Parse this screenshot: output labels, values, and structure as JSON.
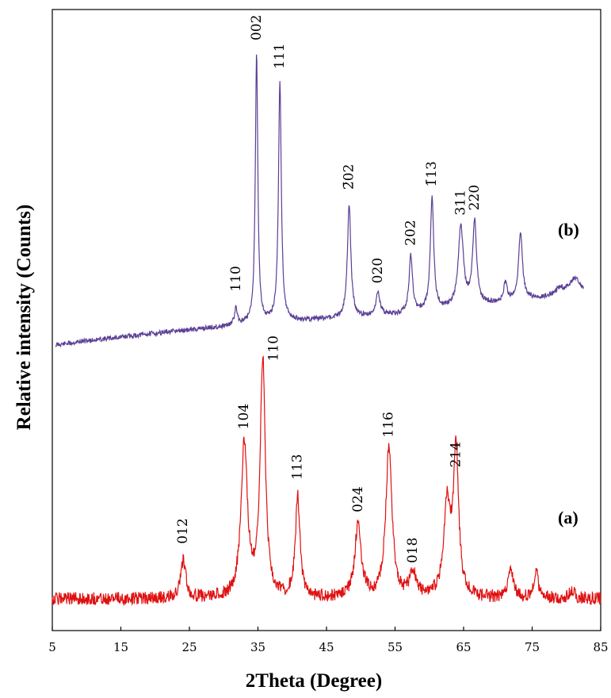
{
  "chart_data": {
    "type": "line",
    "title": "",
    "xlabel": "2Theta (Degree)",
    "ylabel": "Relative intensity (Counts)",
    "xlim": [
      5,
      85
    ],
    "xticks": [
      "5",
      "15",
      "25",
      "35",
      "45",
      "55",
      "65",
      "75",
      "85"
    ],
    "yticks_shown": false,
    "grid": false,
    "series": [
      {
        "name": "(b)",
        "color": "#5b3f96",
        "baseline": [
          [
            5.5,
            0.0
          ],
          [
            10,
            0.05
          ],
          [
            20,
            0.14
          ],
          [
            30,
            0.22
          ],
          [
            35,
            0.26
          ],
          [
            45,
            0.31
          ],
          [
            55,
            0.36
          ],
          [
            65,
            0.45
          ],
          [
            75,
            0.55
          ],
          [
            82.5,
            0.6
          ]
        ],
        "peaks": [
          {
            "x": 31.8,
            "height": 0.2,
            "width": 0.25,
            "label": "110"
          },
          {
            "x": 34.8,
            "height": 3.22,
            "width": 0.22,
            "label": "002"
          },
          {
            "x": 38.2,
            "height": 2.86,
            "width": 0.25,
            "label": "111"
          },
          {
            "x": 48.3,
            "height": 1.36,
            "width": 0.3,
            "label": "2̄02"
          },
          {
            "x": 52.5,
            "height": 0.28,
            "width": 0.35,
            "label": "020"
          },
          {
            "x": 57.3,
            "height": 0.68,
            "width": 0.3,
            "label": "202"
          },
          {
            "x": 60.4,
            "height": 1.34,
            "width": 0.3,
            "label": "1̄13"
          },
          {
            "x": 64.6,
            "height": 0.96,
            "width": 0.45,
            "label": "311"
          },
          {
            "x": 66.6,
            "height": 1.0,
            "width": 0.35,
            "label": "220"
          },
          {
            "x": 71.1,
            "height": 0.22,
            "width": 0.3,
            "label": ""
          },
          {
            "x": 73.3,
            "height": 0.78,
            "width": 0.35,
            "label": ""
          },
          {
            "x": 79.0,
            "height": 0.08,
            "width": 0.8,
            "label": ""
          },
          {
            "x": 81.2,
            "height": 0.2,
            "width": 1.0,
            "label": ""
          }
        ]
      },
      {
        "name": "(a)",
        "color": "#e01010",
        "baseline": [
          [
            5,
            0.0
          ],
          [
            85,
            0.0
          ]
        ],
        "peaks": [
          {
            "x": 24.1,
            "height": 0.65,
            "width": 0.45,
            "label": "012"
          },
          {
            "x": 33.0,
            "height": 2.67,
            "width": 0.55,
            "label": "104"
          },
          {
            "x": 35.7,
            "height": 4.08,
            "width": 0.45,
            "label": "110"
          },
          {
            "x": 40.8,
            "height": 1.73,
            "width": 0.4,
            "label": "113"
          },
          {
            "x": 49.6,
            "height": 1.28,
            "width": 0.55,
            "label": "024"
          },
          {
            "x": 54.1,
            "height": 2.57,
            "width": 0.55,
            "label": "116"
          },
          {
            "x": 57.6,
            "height": 0.4,
            "width": 0.6,
            "label": "018"
          },
          {
            "x": 62.6,
            "height": 1.55,
            "width": 0.6,
            "label": ""
          },
          {
            "x": 63.9,
            "height": 2.49,
            "width": 0.45,
            "label": "214"
          },
          {
            "x": 71.9,
            "height": 0.45,
            "width": 0.5,
            "label": ""
          },
          {
            "x": 75.6,
            "height": 0.5,
            "width": 0.35,
            "label": ""
          },
          {
            "x": 80.8,
            "height": 0.15,
            "width": 0.4,
            "label": ""
          }
        ]
      }
    ]
  }
}
